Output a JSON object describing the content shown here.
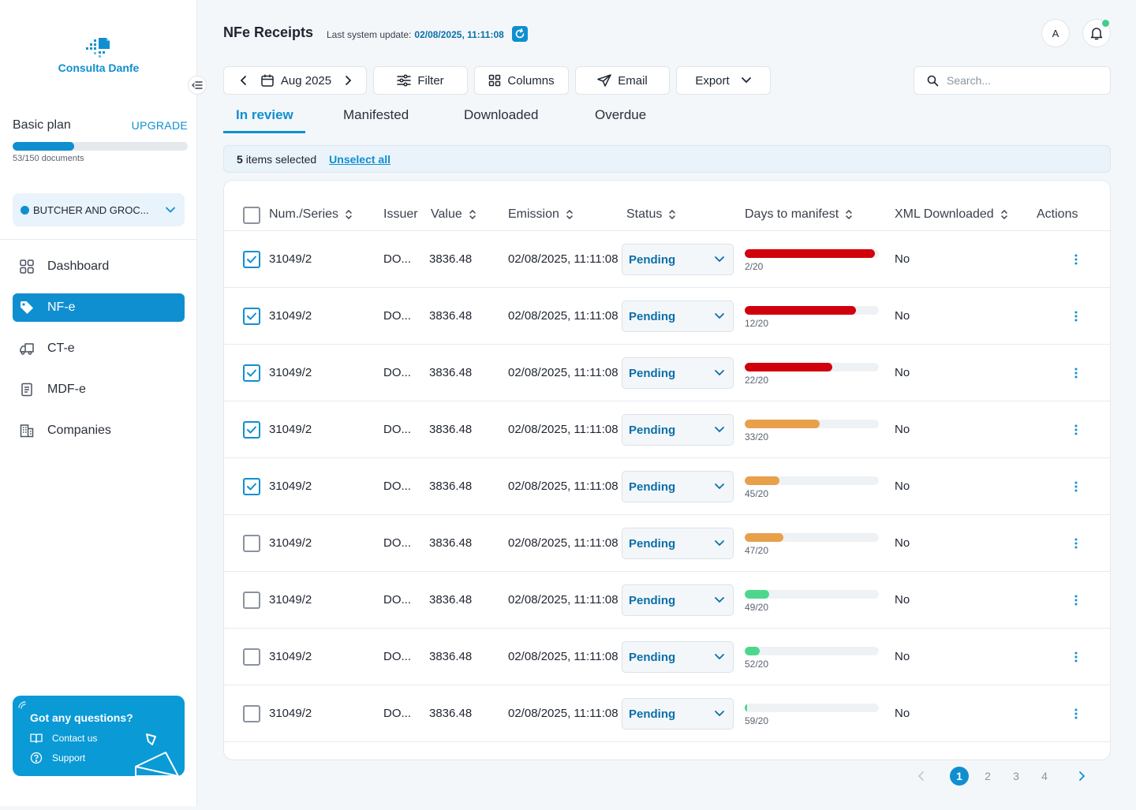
{
  "brand": {
    "name": "Consulta Danfe"
  },
  "plan": {
    "name": "Basic plan",
    "upgrade_label": "UPGRADE",
    "usage_text": "53/150 documents",
    "used": 53,
    "total": 150
  },
  "company_selector": {
    "value": "BUTCHER AND GROC..."
  },
  "nav": [
    {
      "label": "Dashboard",
      "icon": "grid-icon",
      "active": false
    },
    {
      "label": "NF-e",
      "icon": "tag-icon",
      "active": true
    },
    {
      "label": "CT-e",
      "icon": "truck-icon",
      "active": false
    },
    {
      "label": "MDF-e",
      "icon": "document-icon",
      "active": false
    },
    {
      "label": "Companies",
      "icon": "building-icon",
      "active": false
    }
  ],
  "help": {
    "title": "Got any questions?",
    "contact_label": "Contact us",
    "support_label": "Support"
  },
  "header": {
    "title": "NFe Receipts",
    "last_update_label": "Last system update:",
    "last_update_value": "02/08/2025, 11:11:08",
    "avatar_initial": "A"
  },
  "toolbar": {
    "period": "Aug 2025",
    "filter_label": "Filter",
    "columns_label": "Columns",
    "email_label": "Email",
    "export_label": "Export",
    "search_placeholder": "Search..."
  },
  "tabs": [
    {
      "label": "In review",
      "active": true
    },
    {
      "label": "Manifested",
      "active": false
    },
    {
      "label": "Downloaded",
      "active": false
    },
    {
      "label": "Overdue",
      "active": false
    }
  ],
  "selection": {
    "count": "5",
    "count_suffix": "items selected",
    "unselect_label": "Unselect all"
  },
  "table": {
    "columns": {
      "num_series": "Num./Series",
      "issuer": "Issuer",
      "value": "Value",
      "emission": "Emission",
      "status": "Status",
      "days": "Days to manifest",
      "xml": "XML Downloaded",
      "actions": "Actions"
    },
    "rows": [
      {
        "checked": true,
        "num": "31049/2",
        "issuer": "DO...",
        "value": "3836.48",
        "emission": "02/08/2025, 11:11:08",
        "status": "Pending",
        "days_label": "2/20",
        "progress": 0.97,
        "color": "#d0000c",
        "xml": "No"
      },
      {
        "checked": true,
        "num": "31049/2",
        "issuer": "DO...",
        "value": "3836.48",
        "emission": "02/08/2025, 11:11:08",
        "status": "Pending",
        "days_label": "12/20",
        "progress": 0.83,
        "color": "#d0000c",
        "xml": "No"
      },
      {
        "checked": true,
        "num": "31049/2",
        "issuer": "DO...",
        "value": "3836.48",
        "emission": "02/08/2025, 11:11:08",
        "status": "Pending",
        "days_label": "22/20",
        "progress": 0.65,
        "color": "#d0000c",
        "xml": "No"
      },
      {
        "checked": true,
        "num": "31049/2",
        "issuer": "DO...",
        "value": "3836.48",
        "emission": "02/08/2025, 11:11:08",
        "status": "Pending",
        "days_label": "33/20",
        "progress": 0.56,
        "color": "#e8a04a",
        "xml": "No"
      },
      {
        "checked": true,
        "num": "31049/2",
        "issuer": "DO...",
        "value": "3836.48",
        "emission": "02/08/2025, 11:11:08",
        "status": "Pending",
        "days_label": "45/20",
        "progress": 0.26,
        "color": "#e8a04a",
        "xml": "No"
      },
      {
        "checked": false,
        "num": "31049/2",
        "issuer": "DO...",
        "value": "3836.48",
        "emission": "02/08/2025, 11:11:08",
        "status": "Pending",
        "days_label": "47/20",
        "progress": 0.29,
        "color": "#e8a04a",
        "xml": "No"
      },
      {
        "checked": false,
        "num": "31049/2",
        "issuer": "DO...",
        "value": "3836.48",
        "emission": "02/08/2025, 11:11:08",
        "status": "Pending",
        "days_label": "49/20",
        "progress": 0.18,
        "color": "#4fd68e",
        "xml": "No"
      },
      {
        "checked": false,
        "num": "31049/2",
        "issuer": "DO...",
        "value": "3836.48",
        "emission": "02/08/2025, 11:11:08",
        "status": "Pending",
        "days_label": "52/20",
        "progress": 0.11,
        "color": "#4fd68e",
        "xml": "No"
      },
      {
        "checked": false,
        "num": "31049/2",
        "issuer": "DO...",
        "value": "3836.48",
        "emission": "02/08/2025, 11:11:08",
        "status": "Pending",
        "days_label": "59/20",
        "progress": 0.02,
        "color": "#4fd68e",
        "xml": "No"
      }
    ]
  },
  "pagination": {
    "pages": [
      "1",
      "2",
      "3",
      "4"
    ],
    "current": "1"
  },
  "colors": {
    "accent": "#0f8fd0",
    "danger": "#d0000c",
    "warning": "#e8a04a",
    "success": "#4fd68e"
  }
}
